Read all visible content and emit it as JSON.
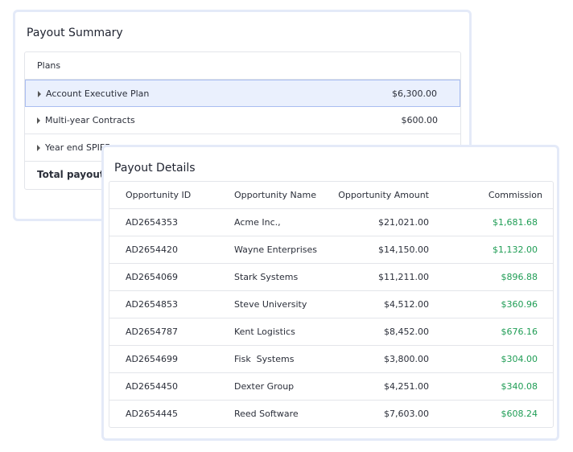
{
  "summary": {
    "title": "Payout Summary",
    "header": "Plans",
    "rows": [
      {
        "name": "Account Executive Plan",
        "amount": "$6,300.00"
      },
      {
        "name": "Multi-year Contracts",
        "amount": "$600.00"
      },
      {
        "name": "Year end SPIFF"
      }
    ],
    "total_label": "Total payout"
  },
  "details": {
    "title": "Payout Details",
    "columns": [
      "Opportunity ID",
      "Opportunity Name",
      "Opportunity Amount",
      "Commission"
    ],
    "rows": [
      [
        "AD2654353",
        "Acme Inc.,",
        "$21,021.00",
        "$1,681.68"
      ],
      [
        "AD2654420",
        "Wayne Enterprises",
        "$14,150.00",
        "$1,132.00"
      ],
      [
        "AD2654069",
        "Stark Systems",
        "$11,211.00",
        "$896.88"
      ],
      [
        "AD2654853",
        "Steve University",
        "$4,512.00",
        "$360.96"
      ],
      [
        "AD2654787",
        "Kent Logistics",
        "$8,452.00",
        "$676.16"
      ],
      [
        "AD2654699",
        "Fisk  Systems",
        "$3,800.00",
        "$304.00"
      ],
      [
        "AD2654450",
        "Dexter Group",
        "$4,251.00",
        "$340.08"
      ],
      [
        "AD2654445",
        "Reed Software",
        "$7,603.00",
        "$608.24"
      ]
    ]
  }
}
